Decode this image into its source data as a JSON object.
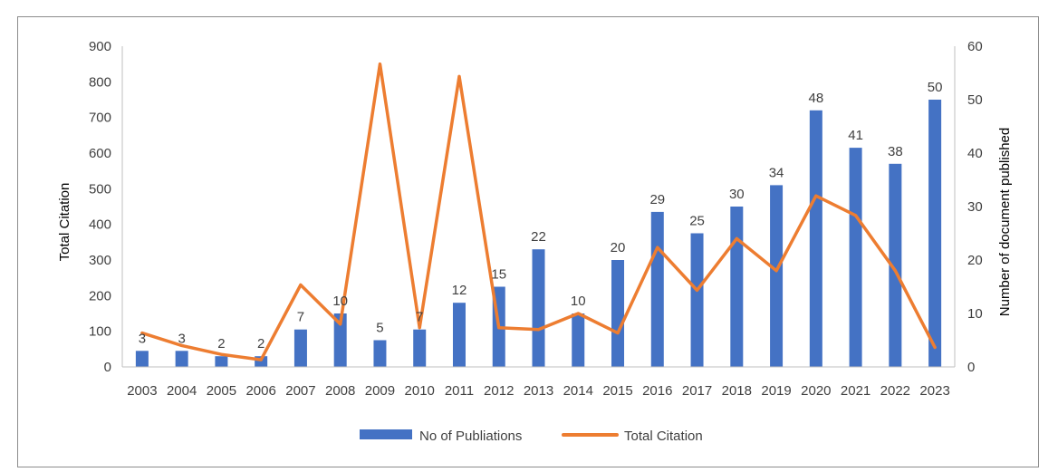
{
  "chart_data": {
    "type": "bar+line",
    "categories": [
      "2003",
      "2004",
      "2005",
      "2006",
      "2007",
      "2008",
      "2009",
      "2010",
      "2011",
      "2012",
      "2013",
      "2014",
      "2015",
      "2016",
      "2017",
      "2018",
      "2019",
      "2020",
      "2021",
      "2022",
      "2023"
    ],
    "series": [
      {
        "name": "No of Publiations",
        "type": "bar",
        "axis": "right",
        "values": [
          3,
          3,
          2,
          2,
          7,
          10,
          5,
          7,
          12,
          15,
          22,
          10,
          20,
          29,
          25,
          30,
          34,
          48,
          41,
          38,
          50
        ],
        "data_labels": [
          "3",
          "3",
          "2",
          "2",
          "7",
          "10",
          "5",
          "7",
          "12",
          "15",
          "22",
          "10",
          "20",
          "29",
          "25",
          "30",
          "34",
          "48",
          "41",
          "38",
          "50"
        ],
        "color": "#4472C4"
      },
      {
        "name": "Total Citation",
        "type": "line",
        "axis": "left",
        "values": [
          95,
          60,
          35,
          20,
          230,
          120,
          850,
          110,
          815,
          110,
          105,
          150,
          95,
          335,
          215,
          360,
          270,
          480,
          425,
          270,
          55
        ],
        "color": "#ED7D31"
      }
    ],
    "ylabel": "Total Citation",
    "ylabel_right": "Number of document published",
    "ylim": [
      0,
      900
    ],
    "ylim_right": [
      0,
      60
    ],
    "yticks": [
      "0",
      "100",
      "200",
      "300",
      "400",
      "500",
      "600",
      "700",
      "800",
      "900"
    ],
    "yticks_right": [
      "0",
      "10",
      "20",
      "30",
      "40",
      "50",
      "60"
    ],
    "grid": false,
    "legend": "bottom"
  }
}
